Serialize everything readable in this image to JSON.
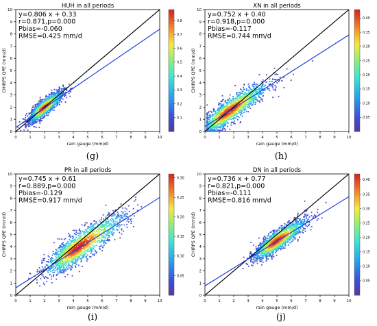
{
  "chart_data": [
    {
      "type": "scatter",
      "panel_label": "(g)",
      "title": "HUH in all periods",
      "xlabel": "rain gauge (mm/d)",
      "ylabel": "CHIRPS QPE (mm/d)",
      "xlim": [
        0,
        10
      ],
      "ylim": [
        0,
        10
      ],
      "xticks": [
        0,
        1,
        2,
        3,
        4,
        5,
        6,
        7,
        8,
        9,
        10
      ],
      "yticks": [
        0,
        1,
        2,
        3,
        4,
        5,
        6,
        7,
        8,
        9,
        10
      ],
      "stats": [
        "y=0.806 x + 0.33",
        "r=0.871,p=0.000",
        "Pbias=-0.060",
        "RMSE=0.425 mm/d"
      ],
      "fit": {
        "slope": 0.806,
        "intercept": 0.33
      },
      "one_to_one": true,
      "density_center": [
        1.9,
        1.9
      ],
      "density_spread": [
        0.55,
        0.6
      ],
      "colorbar": {
        "min": 0,
        "max": 0.88,
        "ticks": [
          "0.1",
          "0.2",
          "0.3",
          "0.4",
          "0.5",
          "0.6",
          "0.7",
          "0.8"
        ]
      }
    },
    {
      "type": "scatter",
      "panel_label": "(h)",
      "title": "XN in all periods",
      "xlabel": "rain gauge (mm/d)",
      "ylabel": "CHIRPS QPE (mm/d)",
      "xlim": [
        0,
        10
      ],
      "ylim": [
        0,
        10
      ],
      "xticks": [
        0,
        1,
        2,
        3,
        4,
        5,
        6,
        7,
        8,
        9,
        10
      ],
      "yticks": [
        0,
        1,
        2,
        3,
        4,
        5,
        6,
        7,
        8,
        9,
        10
      ],
      "stats": [
        "y=0.752 x + 0.40",
        "r=0.918,p=0.000",
        "Pbias=-0.117",
        "RMSE=0.744 mm/d"
      ],
      "fit": {
        "slope": 0.752,
        "intercept": 0.4
      },
      "one_to_one": true,
      "density_center": [
        1.6,
        1.6
      ],
      "density_spread": [
        1.1,
        0.9
      ],
      "colorbar": {
        "min": 0,
        "max": 0.43,
        "ticks": [
          "0.05",
          "0.10",
          "0.15",
          "0.20",
          "0.25",
          "0.30",
          "0.35",
          "0.40"
        ]
      }
    },
    {
      "type": "scatter",
      "panel_label": "(i)",
      "title": "PR in all periods",
      "xlabel": "rain gauge (mm/d)",
      "ylabel": "CHIRPS QPE (mm/d)",
      "xlim": [
        0,
        10
      ],
      "ylim": [
        0,
        10
      ],
      "xticks": [
        0,
        1,
        2,
        3,
        4,
        5,
        6,
        7,
        8,
        9,
        10
      ],
      "yticks": [
        0,
        1,
        2,
        3,
        4,
        5,
        6,
        7,
        8,
        9,
        10
      ],
      "stats": [
        "y=0.745 x + 0.61",
        "r=0.889,p=0.000",
        "Pbias=-0.129",
        "RMSE=0.917 mm/d"
      ],
      "fit": {
        "slope": 0.745,
        "intercept": 0.61
      },
      "one_to_one": true,
      "density_center": [
        4.3,
        3.9
      ],
      "density_spread": [
        1.3,
        1.1
      ],
      "colorbar": {
        "min": 0,
        "max": 0.31,
        "ticks": [
          "0.05",
          "0.10",
          "0.15",
          "0.20",
          "0.25",
          "0.30"
        ]
      }
    },
    {
      "type": "scatter",
      "panel_label": "(j)",
      "title": "DN in all periods",
      "xlabel": "rain gauge (mm/d)",
      "ylabel": "CHIRPS QPE (mm/d)",
      "xlim": [
        0,
        10
      ],
      "ylim": [
        0,
        10
      ],
      "xticks": [
        0,
        1,
        2,
        3,
        4,
        5,
        6,
        7,
        8,
        9,
        10
      ],
      "yticks": [
        0,
        1,
        2,
        3,
        4,
        5,
        6,
        7,
        8,
        9,
        10
      ],
      "stats": [
        "y=0.736 x + 0.77",
        "r=0.821,p=0.000",
        "Pbias=-0.111",
        "RMSE=0.816 mm/d"
      ],
      "fit": {
        "slope": 0.736,
        "intercept": 0.77
      },
      "one_to_one": true,
      "density_center": [
        4.9,
        4.4
      ],
      "density_spread": [
        0.85,
        0.75
      ],
      "colorbar": {
        "min": 0,
        "max": 0.42,
        "ticks": [
          "0.05",
          "0.10",
          "0.15",
          "0.20",
          "0.25",
          "0.30",
          "0.35",
          "0.40"
        ]
      }
    }
  ],
  "colors": {
    "one_to_one": "#000000",
    "fit": "#1f3fd6"
  }
}
